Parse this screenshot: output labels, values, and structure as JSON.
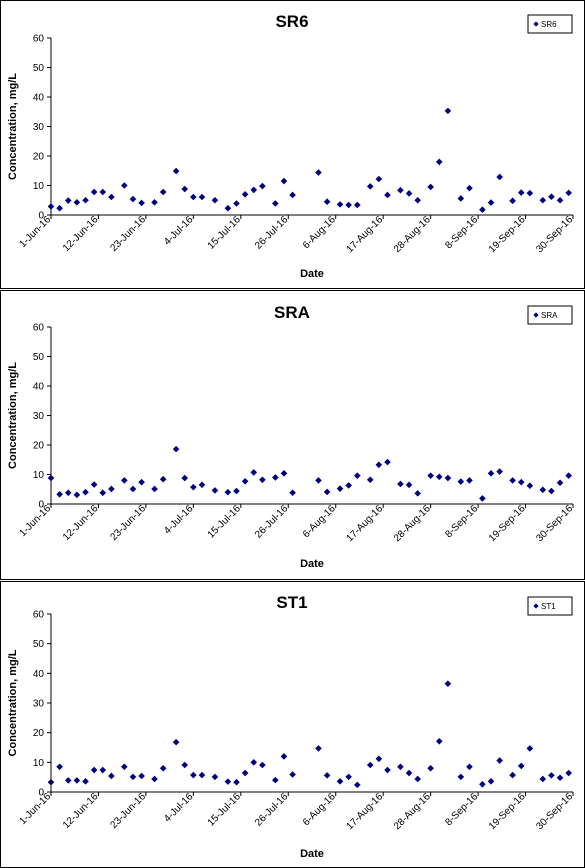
{
  "chart_data": [
    {
      "type": "scatter",
      "title": "SR6",
      "xlabel": "Date",
      "ylabel": "Concentration, mg/L",
      "ylim": [
        0,
        60
      ],
      "yticks": [
        "0",
        "10",
        "20",
        "30",
        "40",
        "50",
        "60"
      ],
      "xlim": [
        "2016-06-01",
        "2016-09-30"
      ],
      "xticks": [
        "1-Jun-16",
        "12-Jun-16",
        "23-Jun-16",
        "4-Jul-16",
        "15-Jul-16",
        "26-Jul-16",
        "6-Aug-16",
        "17-Aug-16",
        "28-Aug-16",
        "8-Sep-16",
        "19-Sep-16",
        "30-Sep-16"
      ],
      "legend": "top-right",
      "series": [
        {
          "name": "SR6",
          "color": "#00007f",
          "points": [
            {
              "x": "2016-06-01",
              "y": 2.9
            },
            {
              "x": "2016-06-03",
              "y": 2.3
            },
            {
              "x": "2016-06-05",
              "y": 4.9
            },
            {
              "x": "2016-06-07",
              "y": 4.3
            },
            {
              "x": "2016-06-09",
              "y": 5.0
            },
            {
              "x": "2016-06-11",
              "y": 7.8
            },
            {
              "x": "2016-06-13",
              "y": 7.8
            },
            {
              "x": "2016-06-15",
              "y": 6.1
            },
            {
              "x": "2016-06-18",
              "y": 10.0
            },
            {
              "x": "2016-06-20",
              "y": 5.4
            },
            {
              "x": "2016-06-22",
              "y": 4.1
            },
            {
              "x": "2016-06-25",
              "y": 4.3
            },
            {
              "x": "2016-06-27",
              "y": 7.8
            },
            {
              "x": "2016-06-30",
              "y": 14.9
            },
            {
              "x": "2016-07-02",
              "y": 8.8
            },
            {
              "x": "2016-07-04",
              "y": 6.1
            },
            {
              "x": "2016-07-06",
              "y": 6.1
            },
            {
              "x": "2016-07-09",
              "y": 5.0
            },
            {
              "x": "2016-07-12",
              "y": 2.3
            },
            {
              "x": "2016-07-14",
              "y": 3.9
            },
            {
              "x": "2016-07-16",
              "y": 7.0
            },
            {
              "x": "2016-07-18",
              "y": 8.5
            },
            {
              "x": "2016-07-20",
              "y": 9.8
            },
            {
              "x": "2016-07-23",
              "y": 3.9
            },
            {
              "x": "2016-07-25",
              "y": 11.5
            },
            {
              "x": "2016-07-27",
              "y": 6.8
            },
            {
              "x": "2016-08-02",
              "y": 14.4
            },
            {
              "x": "2016-08-04",
              "y": 4.5
            },
            {
              "x": "2016-08-07",
              "y": 3.6
            },
            {
              "x": "2016-08-09",
              "y": 3.4
            },
            {
              "x": "2016-08-11",
              "y": 3.4
            },
            {
              "x": "2016-08-14",
              "y": 9.7
            },
            {
              "x": "2016-08-16",
              "y": 12.2
            },
            {
              "x": "2016-08-18",
              "y": 6.8
            },
            {
              "x": "2016-08-21",
              "y": 8.4
            },
            {
              "x": "2016-08-23",
              "y": 7.3
            },
            {
              "x": "2016-08-25",
              "y": 5.0
            },
            {
              "x": "2016-08-28",
              "y": 9.5
            },
            {
              "x": "2016-08-30",
              "y": 18.0
            },
            {
              "x": "2016-09-01",
              "y": 35.3
            },
            {
              "x": "2016-09-04",
              "y": 5.6
            },
            {
              "x": "2016-09-06",
              "y": 9.1
            },
            {
              "x": "2016-09-09",
              "y": 1.8
            },
            {
              "x": "2016-09-11",
              "y": 4.2
            },
            {
              "x": "2016-09-13",
              "y": 12.9
            },
            {
              "x": "2016-09-16",
              "y": 4.8
            },
            {
              "x": "2016-09-18",
              "y": 7.6
            },
            {
              "x": "2016-09-20",
              "y": 7.4
            },
            {
              "x": "2016-09-23",
              "y": 5.0
            },
            {
              "x": "2016-09-25",
              "y": 6.2
            },
            {
              "x": "2016-09-27",
              "y": 5.0
            },
            {
              "x": "2016-09-29",
              "y": 7.5
            }
          ]
        }
      ]
    },
    {
      "type": "scatter",
      "title": "SRA",
      "xlabel": "Date",
      "ylabel": "Concentration, mg/L",
      "ylim": [
        0,
        60
      ],
      "yticks": [
        "0",
        "10",
        "20",
        "30",
        "40",
        "50",
        "60"
      ],
      "xlim": [
        "2016-06-01",
        "2016-09-30"
      ],
      "xticks": [
        "1-Jun-16",
        "12-Jun-16",
        "23-Jun-16",
        "4-Jul-16",
        "15-Jul-16",
        "26-Jul-16",
        "6-Aug-16",
        "17-Aug-16",
        "28-Aug-16",
        "8-Sep-16",
        "19-Sep-16",
        "30-Sep-16"
      ],
      "legend": "top-right",
      "series": [
        {
          "name": "SRA",
          "color": "#00007f",
          "points": [
            {
              "x": "2016-06-01",
              "y": 8.8
            },
            {
              "x": "2016-06-03",
              "y": 3.3
            },
            {
              "x": "2016-06-05",
              "y": 3.8
            },
            {
              "x": "2016-06-07",
              "y": 3.1
            },
            {
              "x": "2016-06-09",
              "y": 4.0
            },
            {
              "x": "2016-06-11",
              "y": 6.6
            },
            {
              "x": "2016-06-13",
              "y": 3.8
            },
            {
              "x": "2016-06-15",
              "y": 5.1
            },
            {
              "x": "2016-06-18",
              "y": 8.0
            },
            {
              "x": "2016-06-20",
              "y": 5.1
            },
            {
              "x": "2016-06-22",
              "y": 7.4
            },
            {
              "x": "2016-06-25",
              "y": 5.1
            },
            {
              "x": "2016-06-27",
              "y": 8.4
            },
            {
              "x": "2016-06-30",
              "y": 18.6
            },
            {
              "x": "2016-07-02",
              "y": 8.8
            },
            {
              "x": "2016-07-04",
              "y": 5.7
            },
            {
              "x": "2016-07-06",
              "y": 6.5
            },
            {
              "x": "2016-07-09",
              "y": 4.6
            },
            {
              "x": "2016-07-12",
              "y": 4.0
            },
            {
              "x": "2016-07-14",
              "y": 4.4
            },
            {
              "x": "2016-07-16",
              "y": 7.7
            },
            {
              "x": "2016-07-18",
              "y": 10.7
            },
            {
              "x": "2016-07-20",
              "y": 8.2
            },
            {
              "x": "2016-07-23",
              "y": 9.0
            },
            {
              "x": "2016-07-25",
              "y": 10.4
            },
            {
              "x": "2016-07-27",
              "y": 3.8
            },
            {
              "x": "2016-08-02",
              "y": 8.0
            },
            {
              "x": "2016-08-04",
              "y": 4.1
            },
            {
              "x": "2016-08-07",
              "y": 5.2
            },
            {
              "x": "2016-08-09",
              "y": 6.3
            },
            {
              "x": "2016-08-11",
              "y": 9.6
            },
            {
              "x": "2016-08-14",
              "y": 8.2
            },
            {
              "x": "2016-08-16",
              "y": 13.3
            },
            {
              "x": "2016-08-18",
              "y": 14.2
            },
            {
              "x": "2016-08-21",
              "y": 6.8
            },
            {
              "x": "2016-08-23",
              "y": 6.5
            },
            {
              "x": "2016-08-25",
              "y": 3.6
            },
            {
              "x": "2016-08-28",
              "y": 9.6
            },
            {
              "x": "2016-08-30",
              "y": 9.2
            },
            {
              "x": "2016-09-01",
              "y": 8.8
            },
            {
              "x": "2016-09-04",
              "y": 7.6
            },
            {
              "x": "2016-09-06",
              "y": 8.0
            },
            {
              "x": "2016-09-09",
              "y": 1.9
            },
            {
              "x": "2016-09-11",
              "y": 10.4
            },
            {
              "x": "2016-09-13",
              "y": 11.0
            },
            {
              "x": "2016-09-16",
              "y": 8.0
            },
            {
              "x": "2016-09-18",
              "y": 7.4
            },
            {
              "x": "2016-09-20",
              "y": 6.2
            },
            {
              "x": "2016-09-23",
              "y": 4.8
            },
            {
              "x": "2016-09-25",
              "y": 4.4
            },
            {
              "x": "2016-09-27",
              "y": 7.2
            },
            {
              "x": "2016-09-29",
              "y": 9.6
            }
          ]
        }
      ]
    },
    {
      "type": "scatter",
      "title": "ST1",
      "xlabel": "Date",
      "ylabel": "Concentration, mg/L",
      "ylim": [
        0,
        60
      ],
      "yticks": [
        "0",
        "10",
        "20",
        "30",
        "40",
        "50",
        "60"
      ],
      "xlim": [
        "2016-06-01",
        "2016-09-30"
      ],
      "xticks": [
        "1-Jun-16",
        "12-Jun-16",
        "23-Jun-16",
        "4-Jul-16",
        "15-Jul-16",
        "26-Jul-16",
        "6-Aug-16",
        "17-Aug-16",
        "28-Aug-16",
        "8-Sep-16",
        "19-Sep-16",
        "30-Sep-16"
      ],
      "legend": "top-right",
      "series": [
        {
          "name": "ST1",
          "color": "#00007f",
          "points": [
            {
              "x": "2016-06-01",
              "y": 3.3
            },
            {
              "x": "2016-06-03",
              "y": 8.5
            },
            {
              "x": "2016-06-05",
              "y": 3.9
            },
            {
              "x": "2016-06-07",
              "y": 3.9
            },
            {
              "x": "2016-06-09",
              "y": 3.6
            },
            {
              "x": "2016-06-11",
              "y": 7.4
            },
            {
              "x": "2016-06-13",
              "y": 7.4
            },
            {
              "x": "2016-06-15",
              "y": 5.4
            },
            {
              "x": "2016-06-18",
              "y": 8.5
            },
            {
              "x": "2016-06-20",
              "y": 5.1
            },
            {
              "x": "2016-06-22",
              "y": 5.4
            },
            {
              "x": "2016-06-25",
              "y": 4.4
            },
            {
              "x": "2016-06-27",
              "y": 8.0
            },
            {
              "x": "2016-06-30",
              "y": 16.8
            },
            {
              "x": "2016-07-02",
              "y": 9.1
            },
            {
              "x": "2016-07-04",
              "y": 5.7
            },
            {
              "x": "2016-07-06",
              "y": 5.7
            },
            {
              "x": "2016-07-09",
              "y": 5.1
            },
            {
              "x": "2016-07-12",
              "y": 3.5
            },
            {
              "x": "2016-07-14",
              "y": 3.3
            },
            {
              "x": "2016-07-16",
              "y": 6.4
            },
            {
              "x": "2016-07-18",
              "y": 10.0
            },
            {
              "x": "2016-07-20",
              "y": 9.1
            },
            {
              "x": "2016-07-23",
              "y": 4.0
            },
            {
              "x": "2016-07-25",
              "y": 12.0
            },
            {
              "x": "2016-07-27",
              "y": 5.9
            },
            {
              "x": "2016-08-02",
              "y": 14.7
            },
            {
              "x": "2016-08-04",
              "y": 5.6
            },
            {
              "x": "2016-08-07",
              "y": 3.6
            },
            {
              "x": "2016-08-09",
              "y": 5.1
            },
            {
              "x": "2016-08-11",
              "y": 2.4
            },
            {
              "x": "2016-08-14",
              "y": 9.1
            },
            {
              "x": "2016-08-16",
              "y": 11.2
            },
            {
              "x": "2016-08-18",
              "y": 7.4
            },
            {
              "x": "2016-08-21",
              "y": 8.5
            },
            {
              "x": "2016-08-23",
              "y": 6.4
            },
            {
              "x": "2016-08-25",
              "y": 4.4
            },
            {
              "x": "2016-08-28",
              "y": 8.0
            },
            {
              "x": "2016-08-30",
              "y": 17.1
            },
            {
              "x": "2016-09-01",
              "y": 36.5
            },
            {
              "x": "2016-09-04",
              "y": 5.1
            },
            {
              "x": "2016-09-06",
              "y": 8.5
            },
            {
              "x": "2016-09-09",
              "y": 2.6
            },
            {
              "x": "2016-09-11",
              "y": 3.6
            },
            {
              "x": "2016-09-13",
              "y": 10.6
            },
            {
              "x": "2016-09-16",
              "y": 5.7
            },
            {
              "x": "2016-09-18",
              "y": 8.8
            },
            {
              "x": "2016-09-20",
              "y": 14.7
            },
            {
              "x": "2016-09-23",
              "y": 4.4
            },
            {
              "x": "2016-09-25",
              "y": 5.6
            },
            {
              "x": "2016-09-27",
              "y": 4.8
            },
            {
              "x": "2016-09-29",
              "y": 6.4
            }
          ]
        }
      ]
    }
  ]
}
